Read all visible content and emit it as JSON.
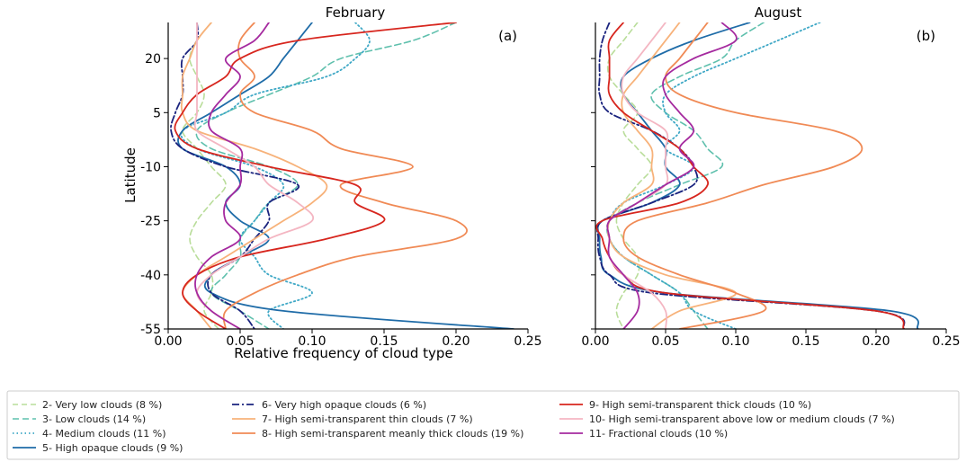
{
  "chart_data": {
    "type": "line",
    "xlabel": "Relative frequency of cloud type",
    "ylabel": "Latitude",
    "xlim": [
      0,
      0.25
    ],
    "ylim": [
      -55,
      30
    ],
    "xticks": [
      "0.00",
      "0.05",
      "0.10",
      "0.15",
      "0.20",
      "0.25"
    ],
    "yticks": [
      "20",
      "5",
      "-10",
      "-25",
      "-40",
      "-55"
    ],
    "xtick_values": [
      0,
      0.05,
      0.1,
      0.15,
      0.2,
      0.25
    ],
    "ytick_values": [
      20,
      5,
      -10,
      -25,
      -40,
      -55
    ],
    "legend_placement": "bottom",
    "latitudes": [
      30,
      25,
      20,
      15,
      10,
      5,
      0,
      -5,
      -10,
      -15,
      -20,
      -25,
      -30,
      -35,
      -40,
      -45,
      -50,
      -55
    ],
    "legend": [
      {
        "id": "2",
        "label": "2- Very low clouds (8 %)",
        "color": "#b9dd9a",
        "dash": "6,4",
        "width": 1.6
      },
      {
        "id": "3",
        "label": "3- Low clouds (14 %)",
        "color": "#5fc0ad",
        "dash": "7,4",
        "width": 1.6
      },
      {
        "id": "4",
        "label": "4- Medium clouds (11 %)",
        "color": "#3fa8c6",
        "dash": "1.5,3",
        "width": 1.8
      },
      {
        "id": "5",
        "label": "5- High opaque clouds (9 %)",
        "color": "#1f6ca8",
        "dash": "",
        "width": 1.8
      },
      {
        "id": "6",
        "label": "6- Very high opaque clouds (6 %)",
        "color": "#1a237e",
        "dash": "8,3,2,3",
        "width": 1.8
      },
      {
        "id": "7",
        "label": "7- High semi-transparent thin clouds (7 %)",
        "color": "#f7b27a",
        "dash": "",
        "width": 1.8
      },
      {
        "id": "8",
        "label": "8- High semi-transparent meanly thick clouds (19 %)",
        "color": "#f08a55",
        "dash": "",
        "width": 1.8
      },
      {
        "id": "9",
        "label": "9- High semi-transparent thick clouds (10 %)",
        "color": "#d7261e",
        "dash": "",
        "width": 1.8
      },
      {
        "id": "10",
        "label": "10- High semi-transparent above low or medium clouds (7 %)",
        "color": "#f4b6c2",
        "dash": "",
        "width": 1.8
      },
      {
        "id": "11",
        "label": "11- Fractional clouds (10 %)",
        "color": "#a52a9f",
        "dash": "",
        "width": 1.8
      }
    ],
    "panels": [
      {
        "title": "February",
        "tag": "(a)",
        "series": [
          {
            "id": "2",
            "values": [
              0.03,
              0.02,
              0.015,
              0.02,
              0.025,
              0.02,
              0.01,
              0.02,
              0.03,
              0.04,
              0.03,
              0.02,
              0.015,
              0.02,
              0.03,
              0.03,
              0.025,
              0.035
            ]
          },
          {
            "id": "3",
            "values": [
              0.2,
              0.17,
              0.12,
              0.1,
              0.07,
              0.04,
              0.02,
              0.03,
              0.07,
              0.09,
              0.07,
              0.06,
              0.05,
              0.05,
              0.04,
              0.03,
              0.05,
              0.07
            ]
          },
          {
            "id": "4",
            "values": [
              0.13,
              0.14,
              0.13,
              0.11,
              0.06,
              0.04,
              0.01,
              0.02,
              0.06,
              0.08,
              0.07,
              0.06,
              0.05,
              0.06,
              0.07,
              0.1,
              0.07,
              0.08
            ]
          },
          {
            "id": "5",
            "values": [
              0.1,
              0.09,
              0.08,
              0.07,
              0.05,
              0.03,
              0.01,
              0.01,
              0.04,
              0.05,
              0.04,
              0.05,
              0.07,
              0.05,
              0.03,
              0.03,
              0.08,
              0.24
            ]
          },
          {
            "id": "6",
            "values": [
              0.02,
              0.02,
              0.01,
              0.01,
              0.01,
              0.005,
              0.002,
              0.01,
              0.04,
              0.09,
              0.07,
              0.07,
              0.06,
              0.05,
              0.03,
              0.03,
              0.05,
              0.06
            ]
          },
          {
            "id": "7",
            "values": [
              0.03,
              0.02,
              0.015,
              0.01,
              0.01,
              0.01,
              0.02,
              0.06,
              0.09,
              0.11,
              0.1,
              0.08,
              0.06,
              0.04,
              0.02,
              0.01,
              0.02,
              0.03
            ]
          },
          {
            "id": "8",
            "values": [
              0.06,
              0.05,
              0.05,
              0.06,
              0.05,
              0.06,
              0.1,
              0.12,
              0.17,
              0.12,
              0.15,
              0.2,
              0.2,
              0.13,
              0.09,
              0.06,
              0.04,
              0.04
            ]
          },
          {
            "id": "9",
            "values": [
              0.2,
              0.09,
              0.05,
              0.04,
              0.02,
              0.01,
              0.005,
              0.02,
              0.07,
              0.13,
              0.13,
              0.15,
              0.11,
              0.05,
              0.02,
              0.01,
              0.02,
              0.04
            ]
          },
          {
            "id": "10",
            "values": [
              0.02,
              0.02,
              0.02,
              0.02,
              0.02,
              0.02,
              0.02,
              0.04,
              0.06,
              0.07,
              0.09,
              0.1,
              0.07,
              0.05,
              0.03,
              0.02,
              0.03,
              0.05
            ]
          },
          {
            "id": "11",
            "values": [
              0.07,
              0.06,
              0.04,
              0.05,
              0.04,
              0.03,
              0.03,
              0.05,
              0.05,
              0.05,
              0.04,
              0.04,
              0.05,
              0.03,
              0.02,
              0.02,
              0.03,
              0.05
            ]
          }
        ]
      },
      {
        "title": "August",
        "tag": "(b)",
        "series": [
          {
            "id": "2",
            "values": [
              0.03,
              0.02,
              0.01,
              0.01,
              0.02,
              0.03,
              0.02,
              0.03,
              0.04,
              0.03,
              0.02,
              0.015,
              0.02,
              0.03,
              0.03,
              0.02,
              0.015,
              0.02
            ]
          },
          {
            "id": "3",
            "values": [
              0.12,
              0.1,
              0.09,
              0.06,
              0.04,
              0.05,
              0.07,
              0.08,
              0.09,
              0.06,
              0.03,
              0.01,
              0.01,
              0.02,
              0.04,
              0.06,
              0.07,
              0.08
            ]
          },
          {
            "id": "4",
            "values": [
              0.16,
              0.13,
              0.1,
              0.07,
              0.05,
              0.05,
              0.06,
              0.05,
              0.07,
              0.05,
              0.02,
              0.01,
              0.01,
              0.02,
              0.04,
              0.06,
              0.07,
              0.1
            ]
          },
          {
            "id": "5",
            "values": [
              0.11,
              0.07,
              0.04,
              0.02,
              0.02,
              0.03,
              0.04,
              0.05,
              0.05,
              0.06,
              0.04,
              0.005,
              0.003,
              0.004,
              0.01,
              0.05,
              0.21,
              0.23
            ]
          },
          {
            "id": "6",
            "values": [
              0.01,
              0.005,
              0.003,
              0.003,
              0.003,
              0.01,
              0.04,
              0.06,
              0.07,
              0.07,
              0.04,
              0.005,
              0.002,
              0.003,
              0.01,
              0.04,
              0.2,
              0.22
            ]
          },
          {
            "id": "7",
            "values": [
              0.06,
              0.05,
              0.04,
              0.03,
              0.02,
              0.02,
              0.03,
              0.04,
              0.04,
              0.04,
              0.02,
              0.01,
              0.01,
              0.02,
              0.05,
              0.1,
              0.06,
              0.04
            ]
          },
          {
            "id": "8",
            "values": [
              0.08,
              0.07,
              0.06,
              0.05,
              0.06,
              0.1,
              0.17,
              0.19,
              0.17,
              0.12,
              0.08,
              0.03,
              0.02,
              0.03,
              0.06,
              0.1,
              0.12,
              0.06
            ]
          },
          {
            "id": "9",
            "values": [
              0.02,
              0.01,
              0.01,
              0.01,
              0.01,
              0.02,
              0.04,
              0.06,
              0.07,
              0.08,
              0.06,
              0.005,
              0.005,
              0.01,
              0.02,
              0.05,
              0.2,
              0.22
            ]
          },
          {
            "id": "10",
            "values": [
              0.05,
              0.04,
              0.03,
              0.02,
              0.02,
              0.03,
              0.05,
              0.05,
              0.05,
              0.05,
              0.03,
              0.01,
              0.01,
              0.01,
              0.02,
              0.04,
              0.05,
              0.05
            ]
          },
          {
            "id": "11",
            "values": [
              0.09,
              0.1,
              0.07,
              0.05,
              0.05,
              0.06,
              0.07,
              0.06,
              0.07,
              0.05,
              0.03,
              0.01,
              0.01,
              0.01,
              0.02,
              0.03,
              0.03,
              0.02
            ]
          }
        ]
      }
    ]
  }
}
